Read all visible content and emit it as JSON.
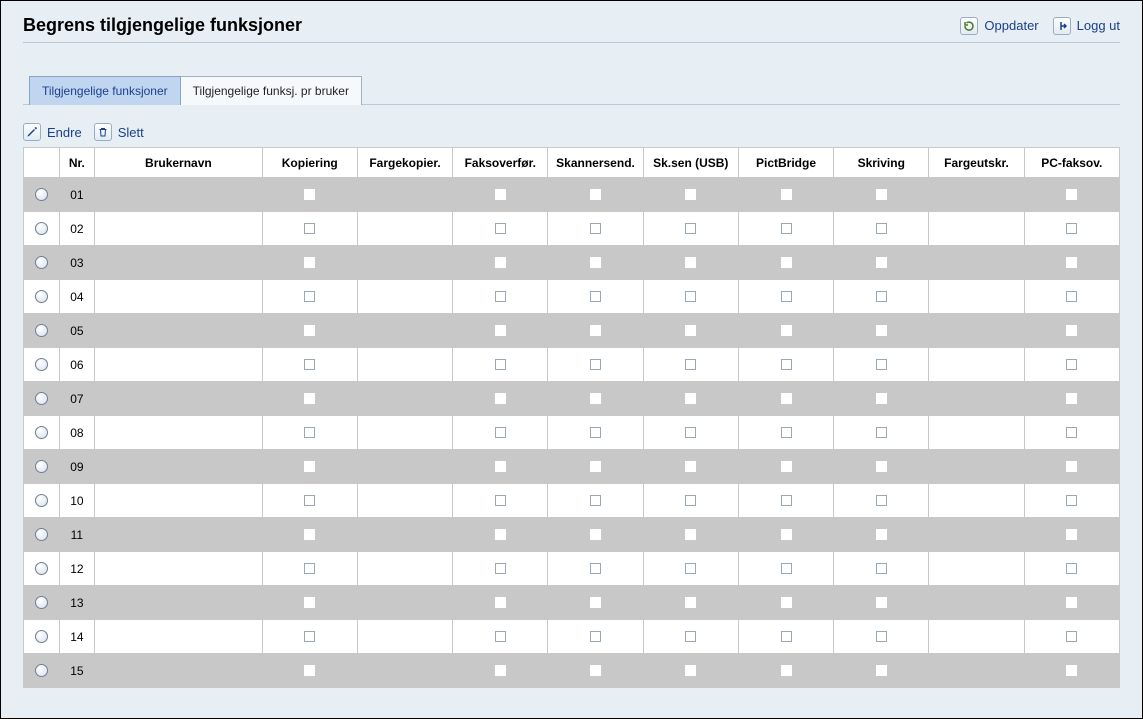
{
  "header": {
    "title": "Begrens tilgjengelige funksjoner",
    "refresh_label": "Oppdater",
    "logout_label": "Logg ut"
  },
  "tabs": [
    {
      "label": "Tilgjengelige funksjoner",
      "active": true
    },
    {
      "label": "Tilgjengelige funksj. pr bruker",
      "active": false
    }
  ],
  "toolbar": {
    "edit_label": "Endre",
    "delete_label": "Slett"
  },
  "table": {
    "columns": {
      "select": "",
      "nr": "Nr.",
      "user": "Brukernavn",
      "fns": [
        "Kopiering",
        "Fargekopier.",
        "Faksoverfør.",
        "Skannersend.",
        "Sk.sen (USB)",
        "PictBridge",
        "Skriving",
        "Fargeutskr.",
        "PC-faksov."
      ]
    },
    "fn_checkbox_visible": [
      true,
      false,
      true,
      true,
      true,
      true,
      true,
      false,
      true
    ],
    "rows": [
      {
        "nr": "01",
        "user": ""
      },
      {
        "nr": "02",
        "user": ""
      },
      {
        "nr": "03",
        "user": ""
      },
      {
        "nr": "04",
        "user": ""
      },
      {
        "nr": "05",
        "user": ""
      },
      {
        "nr": "06",
        "user": ""
      },
      {
        "nr": "07",
        "user": ""
      },
      {
        "nr": "08",
        "user": ""
      },
      {
        "nr": "09",
        "user": ""
      },
      {
        "nr": "10",
        "user": ""
      },
      {
        "nr": "11",
        "user": ""
      },
      {
        "nr": "12",
        "user": ""
      },
      {
        "nr": "13",
        "user": ""
      },
      {
        "nr": "14",
        "user": ""
      },
      {
        "nr": "15",
        "user": ""
      }
    ]
  },
  "colors": {
    "page_bg": "#e7eff5",
    "link": "#1a3f8b",
    "row_odd": "#c8c8c8",
    "row_even": "#ffffff",
    "border": "#c8c8c8",
    "tab_active_bg": "#c0d6f0"
  }
}
